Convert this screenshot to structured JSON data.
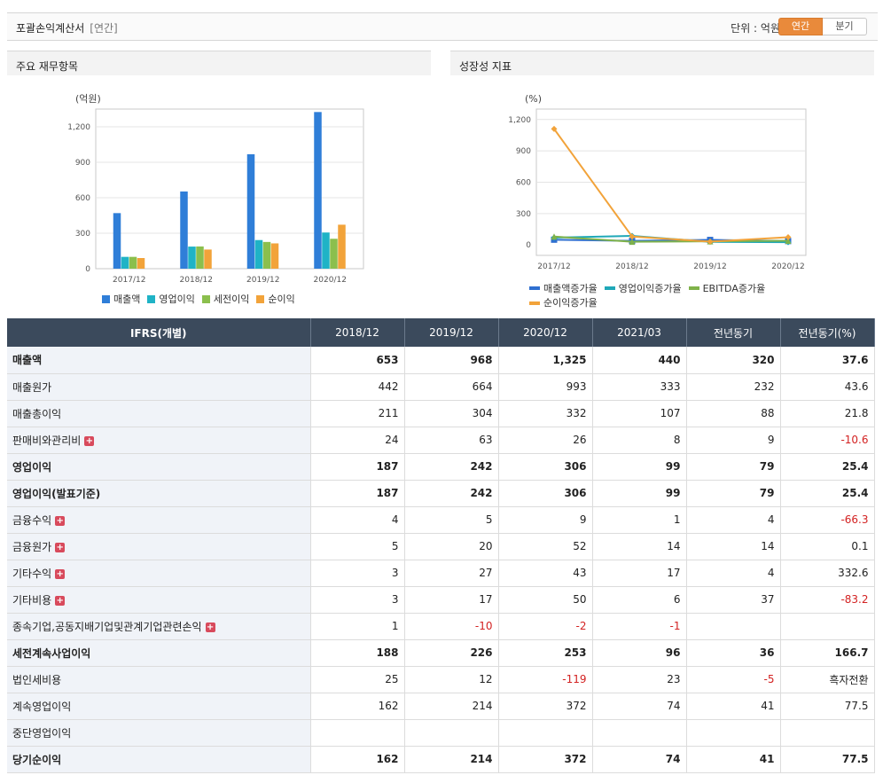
{
  "header": {
    "title": "포괄손익계산서",
    "sub": "[연간]",
    "unit": "단위 : 억원",
    "toggle_on": "연간",
    "toggle_off": "분기"
  },
  "left_panel": {
    "title": "주요 재무항목"
  },
  "right_panel": {
    "title": "성장성 지표"
  },
  "chart_data": [
    {
      "type": "bar",
      "ylabel": "(억원)",
      "categories": [
        "2017/12",
        "2018/12",
        "2019/12",
        "2020/12"
      ],
      "yticks": [
        0,
        300,
        600,
        900,
        1200
      ],
      "ytick_labels": [
        "0",
        "300",
        "600",
        "900",
        "1,200"
      ],
      "ylim": [
        0,
        1350
      ],
      "series": [
        {
          "name": "매출액",
          "color": "#2f7ed8",
          "values": [
            470,
            653,
            968,
            1325
          ]
        },
        {
          "name": "영업이익",
          "color": "#1fb3c6",
          "values": [
            100,
            187,
            242,
            306
          ]
        },
        {
          "name": "세전이익",
          "color": "#8bbf4d",
          "values": [
            100,
            188,
            226,
            253
          ]
        },
        {
          "name": "순이익",
          "color": "#f2a33a",
          "values": [
            90,
            162,
            214,
            372
          ]
        }
      ]
    },
    {
      "type": "line",
      "ylabel": "(%)",
      "categories": [
        "2017/12",
        "2018/12",
        "2019/12",
        "2020/12"
      ],
      "yticks": [
        0,
        300,
        600,
        900,
        1200
      ],
      "ytick_labels": [
        "0",
        "300",
        "600",
        "900",
        "1,200"
      ],
      "ylim": [
        -100,
        1300
      ],
      "series": [
        {
          "name": "매출액증가율",
          "color": "#2f6fd0",
          "values": [
            50,
            39,
            48,
            37
          ]
        },
        {
          "name": "영업이익증가율",
          "color": "#1fa8b8",
          "values": [
            70,
            87,
            29,
            26
          ]
        },
        {
          "name": "EBITDA증가율",
          "color": "#7fb24a",
          "values": [
            80,
            30,
            35,
            40
          ]
        },
        {
          "name": "순이익증가율",
          "color": "#f2a33a",
          "values": [
            1110,
            80,
            32,
            74
          ]
        }
      ]
    }
  ],
  "table": {
    "headers": [
      "IFRS(개별)",
      "2018/12",
      "2019/12",
      "2020/12",
      "2021/03",
      "전년동기",
      "전년동기(%)"
    ],
    "rows": [
      {
        "label": "매출액",
        "bold": true,
        "plus": false,
        "cells": [
          "653",
          "968",
          "1,325",
          "440",
          "320",
          "37.6"
        ],
        "neg": []
      },
      {
        "label": "매출원가",
        "bold": false,
        "plus": false,
        "cells": [
          "442",
          "664",
          "993",
          "333",
          "232",
          "43.6"
        ],
        "neg": []
      },
      {
        "label": "매출총이익",
        "bold": false,
        "plus": false,
        "cells": [
          "211",
          "304",
          "332",
          "107",
          "88",
          "21.8"
        ],
        "neg": []
      },
      {
        "label": "판매비와관리비",
        "bold": false,
        "plus": true,
        "cells": [
          "24",
          "63",
          "26",
          "8",
          "9",
          "-10.6"
        ],
        "neg": [
          5
        ]
      },
      {
        "label": "영업이익",
        "bold": true,
        "plus": false,
        "cells": [
          "187",
          "242",
          "306",
          "99",
          "79",
          "25.4"
        ],
        "neg": []
      },
      {
        "label": "영업이익(발표기준)",
        "bold": true,
        "plus": false,
        "cells": [
          "187",
          "242",
          "306",
          "99",
          "79",
          "25.4"
        ],
        "neg": []
      },
      {
        "label": "금융수익",
        "bold": false,
        "plus": true,
        "cells": [
          "4",
          "5",
          "9",
          "1",
          "4",
          "-66.3"
        ],
        "neg": [
          5
        ]
      },
      {
        "label": "금융원가",
        "bold": false,
        "plus": true,
        "cells": [
          "5",
          "20",
          "52",
          "14",
          "14",
          "0.1"
        ],
        "neg": []
      },
      {
        "label": "기타수익",
        "bold": false,
        "plus": true,
        "cells": [
          "3",
          "27",
          "43",
          "17",
          "4",
          "332.6"
        ],
        "neg": []
      },
      {
        "label": "기타비용",
        "bold": false,
        "plus": true,
        "cells": [
          "3",
          "17",
          "50",
          "6",
          "37",
          "-83.2"
        ],
        "neg": [
          5
        ]
      },
      {
        "label": "종속기업,공동지배기업및관계기업관련손익",
        "bold": false,
        "plus": true,
        "cells": [
          "1",
          "-10",
          "-2",
          "-1",
          "",
          ""
        ],
        "neg": [
          1,
          2,
          3
        ]
      },
      {
        "label": "세전계속사업이익",
        "bold": true,
        "plus": false,
        "cells": [
          "188",
          "226",
          "253",
          "96",
          "36",
          "166.7"
        ],
        "neg": []
      },
      {
        "label": "법인세비용",
        "bold": false,
        "plus": false,
        "cells": [
          "25",
          "12",
          "-119",
          "23",
          "-5",
          "흑자전환"
        ],
        "neg": [
          2,
          4
        ]
      },
      {
        "label": "계속영업이익",
        "bold": false,
        "plus": false,
        "cells": [
          "162",
          "214",
          "372",
          "74",
          "41",
          "77.5"
        ],
        "neg": []
      },
      {
        "label": "중단영업이익",
        "bold": false,
        "plus": false,
        "cells": [
          "",
          "",
          "",
          "",
          "",
          ""
        ],
        "neg": []
      },
      {
        "label": "당기순이익",
        "bold": true,
        "plus": false,
        "cells": [
          "162",
          "214",
          "372",
          "74",
          "41",
          "77.5"
        ],
        "neg": []
      }
    ]
  }
}
